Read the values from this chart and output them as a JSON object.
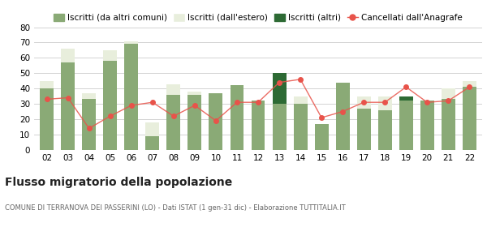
{
  "years": [
    "02",
    "03",
    "04",
    "05",
    "06",
    "07",
    "08",
    "09",
    "10",
    "11",
    "12",
    "13",
    "14",
    "15",
    "16",
    "17",
    "18",
    "19",
    "20",
    "21",
    "22"
  ],
  "iscritti_comuni": [
    40,
    57,
    33,
    58,
    69,
    9,
    36,
    36,
    37,
    42,
    32,
    30,
    30,
    17,
    44,
    27,
    26,
    32,
    32,
    33,
    41
  ],
  "iscritti_estero": [
    5,
    9,
    4,
    7,
    2,
    9,
    7,
    2,
    0,
    0,
    0,
    0,
    5,
    0,
    0,
    8,
    9,
    0,
    0,
    7,
    4
  ],
  "iscritti_altri": [
    0,
    0,
    0,
    0,
    0,
    0,
    0,
    0,
    0,
    0,
    0,
    20,
    0,
    0,
    0,
    0,
    0,
    3,
    0,
    0,
    0
  ],
  "cancellati": [
    33,
    34,
    14,
    22,
    29,
    31,
    22,
    29,
    19,
    31,
    31,
    44,
    46,
    21,
    25,
    31,
    31,
    41,
    31,
    32,
    41
  ],
  "color_comuni": "#8aaa76",
  "color_estero": "#e8eedc",
  "color_altri": "#2d6a34",
  "color_cancellati": "#e8534a",
  "color_line": "#e8534a",
  "ylim": [
    0,
    80
  ],
  "yticks": [
    0,
    10,
    20,
    30,
    40,
    50,
    60,
    70,
    80
  ],
  "title": "Flusso migratorio della popolazione",
  "subtitle": "COMUNE DI TERRANOVA DEI PASSERINI (LO) - Dati ISTAT (1 gen-31 dic) - Elaborazione TUTTITALIA.IT",
  "legend_labels": [
    "Iscritti (da altri comuni)",
    "Iscritti (dall'estero)",
    "Iscritti (altri)",
    "Cancellati dall'Anagrafe"
  ],
  "background_color": "#ffffff",
  "grid_color": "#cccccc",
  "title_fontsize": 10,
  "subtitle_fontsize": 6,
  "tick_fontsize": 7.5,
  "legend_fontsize": 7.5
}
